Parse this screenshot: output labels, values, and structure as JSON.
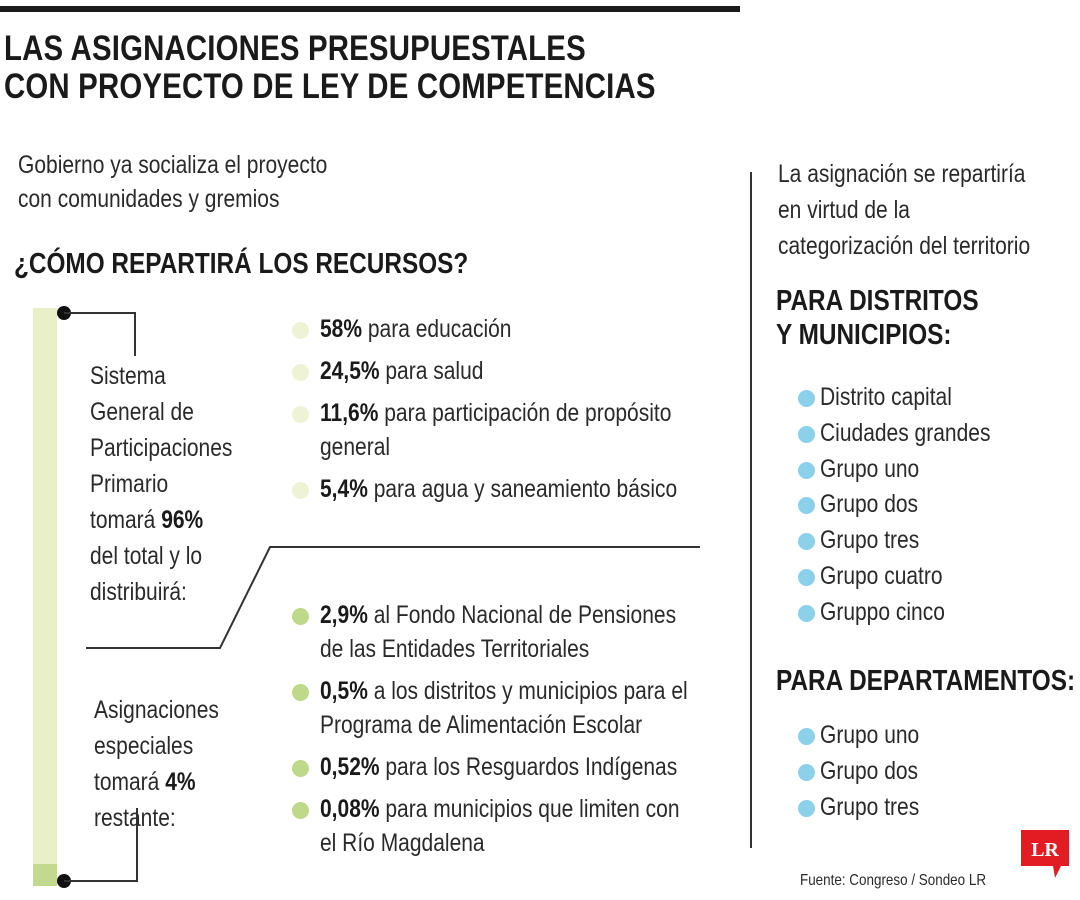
{
  "title": {
    "line1": "LAS ASIGNACIONES PRESUPUESTALES",
    "line2": "CON PROYECTO DE LEY DE COMPETENCIAS"
  },
  "subtitle": {
    "line1": "Gobierno ya socializa el proyecto",
    "line2": "con comunidades y gremios"
  },
  "section_heading": "¿CÓMO REPARTIRÁ LOS RECURSOS?",
  "sgp": {
    "label_lines": [
      "Sistema",
      "General de",
      "Participaciones",
      "Primario"
    ],
    "take_prefix": "tomará ",
    "take_value": "96%",
    "tail_lines": [
      "del total y lo",
      "distribuirá:"
    ],
    "items": [
      {
        "value": "58%",
        "text_lines": [
          " para educación"
        ]
      },
      {
        "value": "24,5%",
        "text_lines": [
          " para salud"
        ]
      },
      {
        "value": "11,6%",
        "text_lines": [
          " para participación de propósito",
          "general"
        ]
      },
      {
        "value": "5,4%",
        "text_lines": [
          " para agua y saneamiento básico"
        ]
      }
    ],
    "bullet_color": "#eef3d6"
  },
  "special": {
    "label_lines": [
      "Asignaciones",
      "especiales"
    ],
    "take_prefix": "tomará ",
    "take_value": "4%",
    "tail_lines": [
      "restante:"
    ],
    "items": [
      {
        "value": "2,9%",
        "text_lines": [
          " al Fondo Nacional de Pensiones",
          "de las Entidades Territoriales"
        ]
      },
      {
        "value": "0,5%",
        "text_lines": [
          " a los distritos y municipios para el",
          "Programa de Alimentación Escolar"
        ]
      },
      {
        "value": "0,52%",
        "text_lines": [
          " para los Resguardos Indígenas"
        ]
      },
      {
        "value": "0,08%",
        "text_lines": [
          " para municipios que limiten con",
          "el Río Magdalena"
        ]
      }
    ],
    "bullet_color": "#bfd98a"
  },
  "right": {
    "intro_lines": [
      "La asignación se repartiría",
      "en virtud de la",
      "categorización del territorio"
    ],
    "districts_heading_lines": [
      "PARA DISTRITOS",
      "Y MUNICIPIOS:"
    ],
    "districts": [
      "Distrito capital",
      "Ciudades grandes",
      "Grupo uno",
      "Grupo dos",
      "Grupo tres",
      "Grupo cuatro",
      "Gruppo cinco"
    ],
    "departments_heading": "PARA DEPARTAMENTOS:",
    "departments": [
      "Grupo uno",
      "Grupo dos",
      "Grupo tres"
    ],
    "bullet_color": "#8dd0ea"
  },
  "source": "Fuente: Congreso / Sondeo LR",
  "logo": {
    "text": "LR",
    "color": "#e31c23"
  },
  "colors": {
    "ink": "#1a1a1a",
    "bar_light": "#e9f0c7",
    "bar_dark": "#c2d98f"
  }
}
